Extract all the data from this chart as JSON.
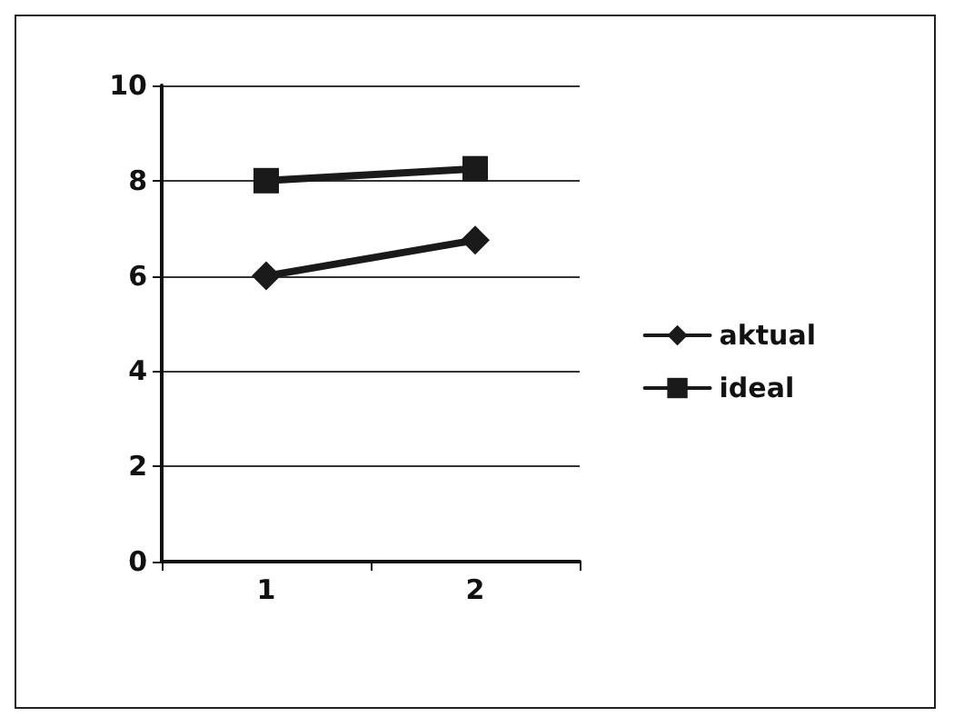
{
  "chart_data": {
    "type": "line",
    "categories": [
      "1",
      "2"
    ],
    "series": [
      {
        "name": "aktual",
        "color": "#1a1a1a",
        "marker": "diamond",
        "values": [
          6,
          6.75
        ]
      },
      {
        "name": "ideal",
        "color": "#1a1a1a",
        "marker": "square",
        "values": [
          8,
          8.25
        ]
      }
    ],
    "ylim": [
      0,
      10
    ],
    "yticks": [
      0,
      2,
      4,
      6,
      8,
      10
    ],
    "grid": "y",
    "legend": "right",
    "line_style": "solid"
  }
}
